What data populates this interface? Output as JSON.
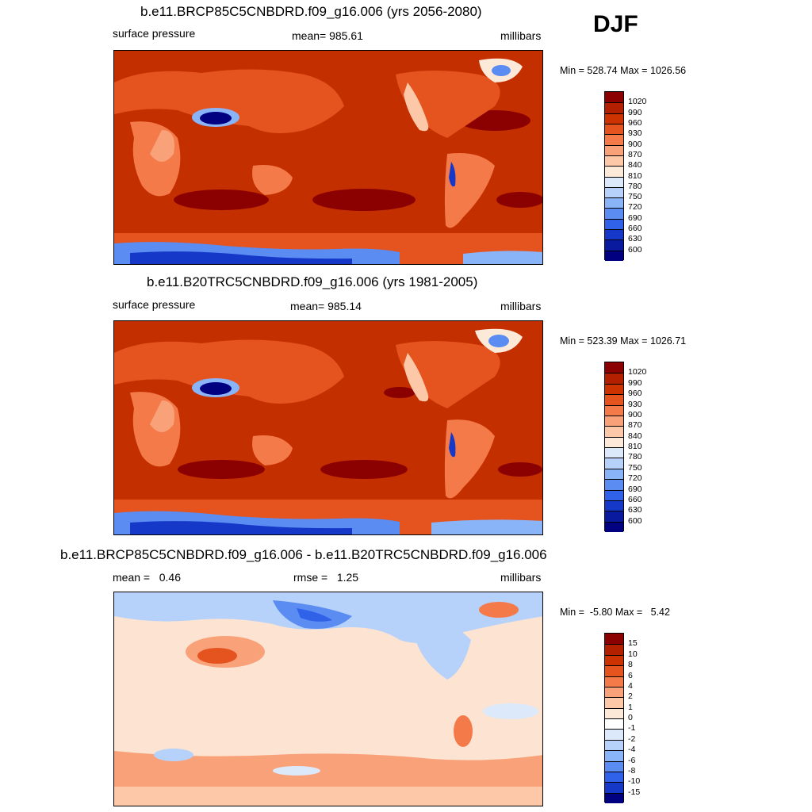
{
  "season": "DJF",
  "panels": [
    {
      "title": "b.e11.BRCP85C5CNBDRD.f09_g16.006 (yrs 2056-2080)",
      "left_label": "surface pressure",
      "center_label": "mean= 985.61",
      "right_label": "millibars",
      "minmax": "Min = 528.74 Max = 1026.56",
      "colorbar_labels": [
        "1020",
        "990",
        "960",
        "930",
        "900",
        "870",
        "840",
        "810",
        "780",
        "750",
        "720",
        "690",
        "660",
        "630",
        "600"
      ],
      "colors": [
        "#8b0000",
        "#b22000",
        "#cc3300",
        "#e5531e",
        "#f47a4a",
        "#f9a27a",
        "#fcc8a8",
        "#fde9d8",
        "#dbe9fb",
        "#b6d2fa",
        "#8ab4f8",
        "#5a8cf2",
        "#2f62e8",
        "#1638c8",
        "#0a1a9e",
        "#000080"
      ],
      "background": "#c42f00"
    },
    {
      "title": "b.e11.B20TRC5CNBDRD.f09_g16.006 (yrs 1981-2005)",
      "left_label": "surface pressure",
      "center_label": "mean= 985.14",
      "right_label": "millibars",
      "minmax": "Min = 523.39 Max = 1026.71",
      "colorbar_labels": [
        "1020",
        "990",
        "960",
        "930",
        "900",
        "870",
        "840",
        "810",
        "780",
        "750",
        "720",
        "690",
        "660",
        "630",
        "600"
      ],
      "colors": [
        "#8b0000",
        "#b22000",
        "#cc3300",
        "#e5531e",
        "#f47a4a",
        "#f9a27a",
        "#fcc8a8",
        "#fde9d8",
        "#dbe9fb",
        "#b6d2fa",
        "#8ab4f8",
        "#5a8cf2",
        "#2f62e8",
        "#1638c8",
        "#0a1a9e",
        "#000080"
      ],
      "background": "#c42f00"
    },
    {
      "title": "b.e11.BRCP85C5CNBDRD.f09_g16.006 - b.e11.B20TRC5CNBDRD.f09_g16.006",
      "left_label": "mean =   0.46",
      "center_label": "rmse =   1.25",
      "right_label": "millibars",
      "minmax": "Min =  -5.80 Max =   5.42",
      "colorbar_labels": [
        "15",
        "10",
        "8",
        "6",
        "4",
        "2",
        "1",
        "0",
        "-1",
        "-2",
        "-4",
        "-6",
        "-8",
        "-10",
        "-15"
      ],
      "colors": [
        "#8b0000",
        "#b22000",
        "#cc3300",
        "#e5531e",
        "#f47a4a",
        "#f9a27a",
        "#fcc8a8",
        "#fde9d8",
        "#ffffff",
        "#dbe9fb",
        "#b6d2fa",
        "#8ab4f8",
        "#5a8cf2",
        "#2f62e8",
        "#1638c8",
        "#000080"
      ],
      "background": "#fde4d2"
    }
  ]
}
